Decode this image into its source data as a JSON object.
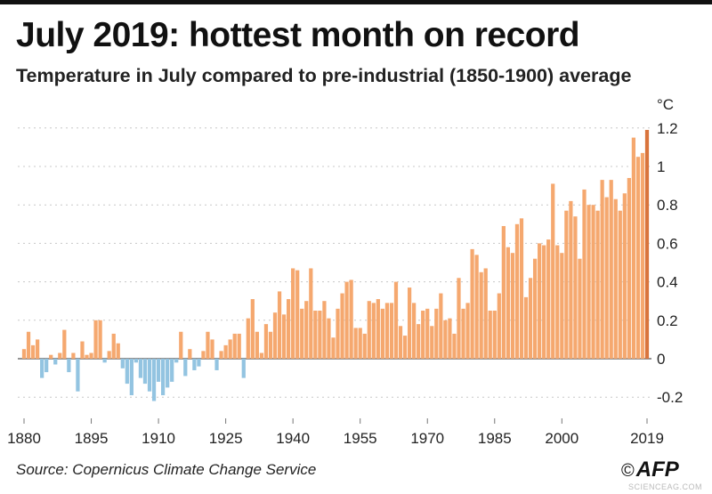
{
  "title": "July 2019: hottest month on record",
  "subtitle": "Temperature in July compared to pre-industrial (1850-1900) average",
  "source": "Source: Copernicus Climate Change Service",
  "logo": "AFP",
  "copyright": "©",
  "watermark": "SCIENCEAG.COM",
  "colors": {
    "positive": "#f5a86f",
    "negative": "#93c4e1",
    "highlight": "#d9743c",
    "grid": "#c8c8c8",
    "zero": "#555555"
  },
  "chart_data": {
    "type": "bar",
    "title": "July 2019: hottest month on record",
    "subtitle": "Temperature in July compared to pre-industrial (1850-1900) average",
    "ylabel": "°C",
    "x_start": 1880,
    "x_end": 2019,
    "ylim": [
      -0.25,
      1.25
    ],
    "yticks": [
      -0.2,
      0,
      0.2,
      0.4,
      0.6,
      0.8,
      1,
      1.2
    ],
    "ytick_labels": [
      "-0.2",
      "0",
      "0.2",
      "0.4",
      "0.6",
      "0.8",
      "1",
      "1.2"
    ],
    "xticks": [
      1880,
      1895,
      1910,
      1925,
      1940,
      1955,
      1970,
      1985,
      2000,
      2019
    ],
    "xtick_labels": [
      "1880",
      "1895",
      "1910",
      "1925",
      "1940",
      "1955",
      "1970",
      "1985",
      "2000",
      "2019"
    ],
    "grid": true,
    "highlight_year": 2019,
    "values": [
      0.05,
      0.14,
      0.07,
      0.1,
      -0.1,
      -0.07,
      0.02,
      -0.03,
      0.03,
      0.15,
      -0.07,
      0.03,
      -0.17,
      0.09,
      0.02,
      0.03,
      0.2,
      0.2,
      -0.02,
      0.04,
      0.13,
      0.08,
      -0.05,
      -0.13,
      -0.19,
      -0.02,
      -0.1,
      -0.13,
      -0.17,
      -0.22,
      -0.12,
      -0.19,
      -0.15,
      -0.12,
      -0.02,
      0.14,
      -0.09,
      0.05,
      -0.06,
      -0.04,
      0.04,
      0.14,
      0.1,
      -0.06,
      0.04,
      0.07,
      0.1,
      0.13,
      0.13,
      -0.1,
      0.21,
      0.31,
      0.14,
      0.03,
      0.18,
      0.14,
      0.24,
      0.35,
      0.23,
      0.31,
      0.47,
      0.46,
      0.26,
      0.3,
      0.47,
      0.25,
      0.25,
      0.3,
      0.21,
      0.11,
      0.26,
      0.34,
      0.4,
      0.41,
      0.16,
      0.16,
      0.13,
      0.3,
      0.29,
      0.31,
      0.26,
      0.29,
      0.29,
      0.4,
      0.17,
      0.12,
      0.37,
      0.29,
      0.18,
      0.25,
      0.26,
      0.17,
      0.26,
      0.34,
      0.2,
      0.21,
      0.13,
      0.42,
      0.26,
      0.29,
      0.57,
      0.54,
      0.45,
      0.47,
      0.25,
      0.25,
      0.34,
      0.69,
      0.58,
      0.55,
      0.7,
      0.73,
      0.32,
      0.42,
      0.52,
      0.6,
      0.59,
      0.62,
      0.91,
      0.59,
      0.55,
      0.77,
      0.82,
      0.74,
      0.52,
      0.88,
      0.8,
      0.8,
      0.77,
      0.93,
      0.84,
      0.93,
      0.83,
      0.77,
      0.86,
      0.94,
      1.15,
      1.05,
      1.07,
      1.19
    ]
  }
}
